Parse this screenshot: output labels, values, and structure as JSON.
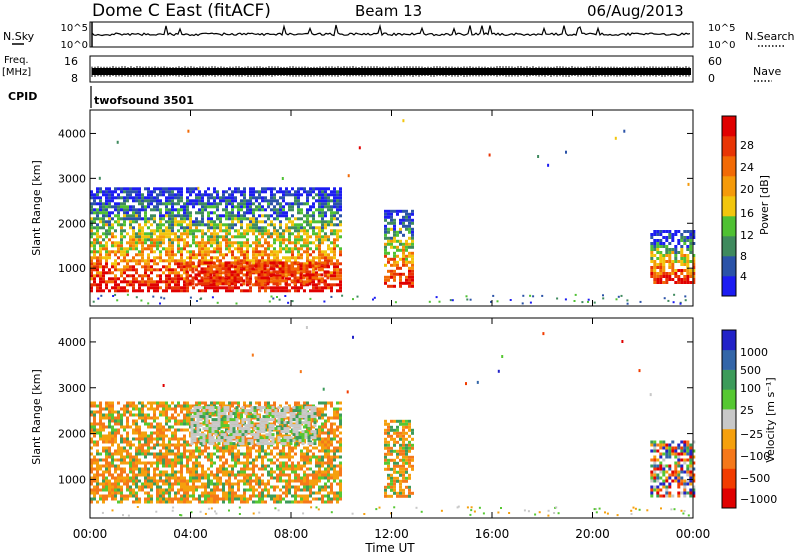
{
  "header": {
    "station": "Dome C East (fitACF)",
    "beam": "Beam 13",
    "date": "06/Aug/2013"
  },
  "nsky_panel": {
    "left_label": "N.Sky",
    "right_label": "N.Search",
    "ticks_left": [
      "10^5",
      "10^0"
    ],
    "ticks_right": [
      "10^5",
      "10^0"
    ]
  },
  "freq_panel": {
    "left_label_1": "Freq.",
    "left_label_2": "[MHz]",
    "right_label": "Nave",
    "ticks_left": [
      "16",
      "8"
    ],
    "ticks_right": [
      "60",
      "0"
    ]
  },
  "cpid": {
    "label": "CPID",
    "value": "twofsound 3501"
  },
  "x_axis": {
    "label": "Time UT",
    "ticks": [
      "00:00",
      "04:00",
      "08:00",
      "12:00",
      "16:00",
      "20:00",
      "00:00"
    ]
  },
  "colors": {
    "power_scale": [
      "#1c1cf2",
      "#2b53a8",
      "#3f8a5e",
      "#4fc133",
      "#f2c60d",
      "#f59a09",
      "#f26a05",
      "#e83505",
      "#e00000"
    ],
    "velocity_scale": [
      "#e00000",
      "#f23c00",
      "#f5781a",
      "#f5a00d",
      "#c8c8c8",
      "#56c832",
      "#3c9b5a",
      "#3366a8",
      "#2222c8"
    ]
  },
  "chart_data": [
    {
      "type": "heatmap",
      "panel": "power",
      "ylabel": "Slant Range [km]",
      "yticks": [
        "1000",
        "2000",
        "3000",
        "4000"
      ],
      "ylim": [
        180,
        4500
      ],
      "xlim_hours": [
        0,
        24
      ],
      "colorbar_label": "Power [dB]",
      "colorbar_ticks": [
        "4",
        "8",
        "12",
        "16",
        "20",
        "24",
        "28"
      ],
      "colorbar_range": [
        0,
        32
      ],
      "regions": [
        {
          "t0": 0.0,
          "t1": 10.0,
          "r0": 500,
          "r1": 2800,
          "level": "mixed"
        },
        {
          "t0": 3.8,
          "t1": 9.5,
          "r0": 650,
          "r1": 1150,
          "level": "high"
        },
        {
          "t0": 11.7,
          "t1": 12.8,
          "r0": 600,
          "r1": 2300,
          "level": "mixed"
        },
        {
          "t0": 22.3,
          "t1": 24.0,
          "r0": 650,
          "r1": 1850,
          "level": "mixed"
        }
      ]
    },
    {
      "type": "heatmap",
      "panel": "velocity",
      "ylabel": "Slant Range [km]",
      "yticks": [
        "1000",
        "2000",
        "3000",
        "4000"
      ],
      "ylim": [
        180,
        4500
      ],
      "xlim_hours": [
        0,
        24
      ],
      "colorbar_label": "Velocity [m s⁻¹]",
      "colorbar_ticks": [
        "1000",
        "500",
        "100",
        "25",
        "−25",
        "−100",
        "−500",
        "−1000"
      ],
      "regions": [
        {
          "t0": 0.0,
          "t1": 10.0,
          "r0": 500,
          "r1": 2700,
          "level": "negative"
        },
        {
          "t0": 4.0,
          "t1": 9.0,
          "r0": 1800,
          "r1": 2600,
          "level": "near-zero"
        },
        {
          "t0": 11.7,
          "t1": 12.8,
          "r0": 600,
          "r1": 2300,
          "level": "negative"
        },
        {
          "t0": 22.3,
          "t1": 24.0,
          "r0": 650,
          "r1": 1850,
          "level": "mixed"
        }
      ]
    }
  ]
}
